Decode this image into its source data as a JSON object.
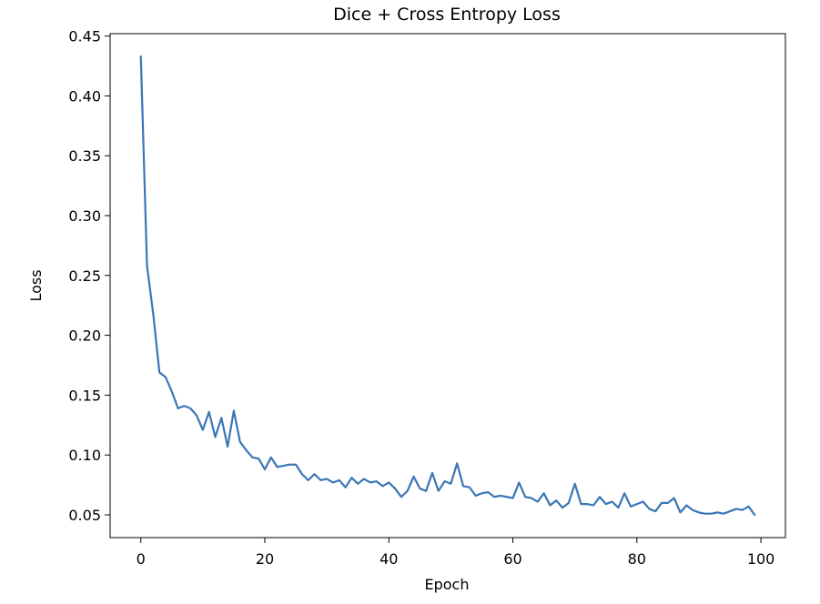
{
  "chart_data": {
    "type": "line",
    "title": "Dice + Cross Entropy Loss",
    "xlabel": "Epoch",
    "ylabel": "Loss",
    "xlim": [
      -4.95,
      103.95
    ],
    "ylim": [
      0.031,
      0.452
    ],
    "xticks": [
      0,
      20,
      40,
      60,
      80,
      100
    ],
    "xtick_labels": [
      "0",
      "20",
      "40",
      "60",
      "80",
      "100"
    ],
    "yticks": [
      0.05,
      0.1,
      0.15,
      0.2,
      0.25,
      0.3,
      0.35,
      0.4,
      0.45
    ],
    "ytick_labels": [
      "0.05",
      "0.10",
      "0.15",
      "0.20",
      "0.25",
      "0.30",
      "0.35",
      "0.40",
      "0.45"
    ],
    "grid": false,
    "line_color": "#3a76b5",
    "series": [
      {
        "x": [
          0,
          1,
          2,
          3,
          4,
          5,
          6,
          7,
          8,
          9,
          10,
          11,
          12,
          13,
          14,
          15,
          16,
          17,
          18,
          19,
          20,
          21,
          22,
          23,
          24,
          25,
          26,
          27,
          28,
          29,
          30,
          31,
          32,
          33,
          34,
          35,
          36,
          37,
          38,
          39,
          40,
          41,
          42,
          43,
          44,
          45,
          46,
          47,
          48,
          49,
          50,
          51,
          52,
          53,
          54,
          55,
          56,
          57,
          58,
          59,
          60,
          61,
          62,
          63,
          64,
          65,
          66,
          67,
          68,
          69,
          70,
          71,
          72,
          73,
          74,
          75,
          76,
          77,
          78,
          79,
          80,
          81,
          82,
          83,
          84,
          85,
          86,
          87,
          88,
          89,
          90,
          91,
          92,
          93,
          94,
          95,
          96,
          97,
          98,
          99
        ],
        "values": [
          0.433,
          0.258,
          0.218,
          0.169,
          0.165,
          0.153,
          0.139,
          0.141,
          0.139,
          0.133,
          0.121,
          0.136,
          0.115,
          0.131,
          0.107,
          0.137,
          0.111,
          0.104,
          0.098,
          0.097,
          0.088,
          0.098,
          0.09,
          0.091,
          0.092,
          0.092,
          0.084,
          0.079,
          0.084,
          0.079,
          0.08,
          0.077,
          0.079,
          0.073,
          0.081,
          0.076,
          0.08,
          0.077,
          0.078,
          0.074,
          0.077,
          0.072,
          0.065,
          0.07,
          0.082,
          0.072,
          0.07,
          0.085,
          0.07,
          0.078,
          0.076,
          0.093,
          0.074,
          0.073,
          0.066,
          0.068,
          0.069,
          0.065,
          0.066,
          0.065,
          0.064,
          0.077,
          0.065,
          0.064,
          0.061,
          0.068,
          0.058,
          0.062,
          0.056,
          0.06,
          0.076,
          0.059,
          0.059,
          0.058,
          0.065,
          0.059,
          0.061,
          0.056,
          0.068,
          0.057,
          0.059,
          0.061,
          0.055,
          0.053,
          0.06,
          0.06,
          0.064,
          0.052,
          0.058,
          0.054,
          0.052,
          0.051,
          0.051,
          0.052,
          0.051,
          0.053,
          0.055,
          0.054,
          0.057,
          0.05
        ]
      }
    ]
  }
}
